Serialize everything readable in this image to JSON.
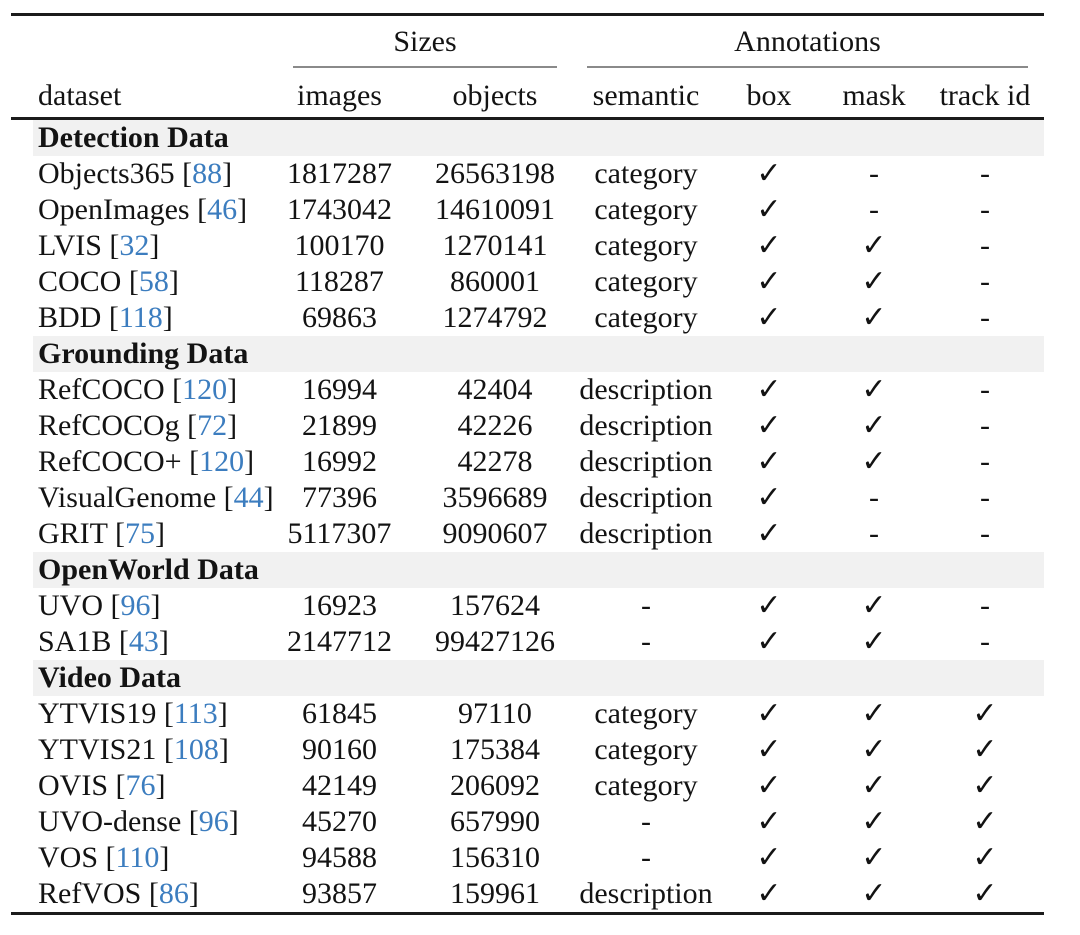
{
  "table": {
    "groups": [
      {
        "label": "Sizes"
      },
      {
        "label": "Annotations"
      }
    ],
    "columns": [
      "dataset",
      "images",
      "objects",
      "semantic",
      "box",
      "mask",
      "track id"
    ],
    "glyphs": {
      "check": "✓",
      "dash": "-"
    },
    "colors": {
      "citation_link": "#3c7dbf",
      "section_band": "#f1f1f1",
      "rule": "#1b1b1b"
    },
    "sections": [
      {
        "title": "Detection Data",
        "rows": [
          {
            "name": "Objects365",
            "ref": "88",
            "cells": [
              "1817287",
              "26563198",
              "category",
              "✓",
              "-",
              "-"
            ]
          },
          {
            "name": "OpenImages",
            "ref": "46",
            "cells": [
              "1743042",
              "14610091",
              "category",
              "✓",
              "-",
              "-"
            ]
          },
          {
            "name": "LVIS",
            "ref": "32",
            "cells": [
              "100170",
              "1270141",
              "category",
              "✓",
              "✓",
              "-"
            ]
          },
          {
            "name": "COCO",
            "ref": "58",
            "cells": [
              "118287",
              "860001",
              "category",
              "✓",
              "✓",
              "-"
            ]
          },
          {
            "name": "BDD",
            "ref": "118",
            "cells": [
              "69863",
              "1274792",
              "category",
              "✓",
              "✓",
              "-"
            ]
          }
        ]
      },
      {
        "title": "Grounding Data",
        "rows": [
          {
            "name": "RefCOCO",
            "ref": "120",
            "cells": [
              "16994",
              "42404",
              "description",
              "✓",
              "✓",
              "-"
            ]
          },
          {
            "name": "RefCOCOg",
            "ref": "72",
            "cells": [
              "21899",
              "42226",
              "description",
              "✓",
              "✓",
              "-"
            ]
          },
          {
            "name": "RefCOCO+",
            "ref": "120",
            "cells": [
              "16992",
              "42278",
              "description",
              "✓",
              "✓",
              "-"
            ]
          },
          {
            "name": "VisualGenome",
            "ref": "44",
            "cells": [
              "77396",
              "3596689",
              "description",
              "✓",
              "-",
              "-"
            ]
          },
          {
            "name": "GRIT",
            "ref": "75",
            "cells": [
              "5117307",
              "9090607",
              "description",
              "✓",
              "-",
              "-"
            ]
          }
        ]
      },
      {
        "title": "OpenWorld Data",
        "rows": [
          {
            "name": "UVO",
            "ref": "96",
            "cells": [
              "16923",
              "157624",
              "-",
              "✓",
              "✓",
              "-"
            ]
          },
          {
            "name": "SA1B",
            "ref": "43",
            "cells": [
              "2147712",
              "99427126",
              "-",
              "✓",
              "✓",
              "-"
            ]
          }
        ]
      },
      {
        "title": "Video Data",
        "rows": [
          {
            "name": "YTVIS19",
            "ref": "113",
            "cells": [
              "61845",
              "97110",
              "category",
              "✓",
              "✓",
              "✓"
            ]
          },
          {
            "name": "YTVIS21",
            "ref": "108",
            "cells": [
              "90160",
              "175384",
              "category",
              "✓",
              "✓",
              "✓"
            ]
          },
          {
            "name": "OVIS",
            "ref": "76",
            "cells": [
              "42149",
              "206092",
              "category",
              "✓",
              "✓",
              "✓"
            ]
          },
          {
            "name": "UVO-dense",
            "ref": "96",
            "cells": [
              "45270",
              "657990",
              "-",
              "✓",
              "✓",
              "✓"
            ]
          },
          {
            "name": "VOS",
            "ref": "110",
            "cells": [
              "94588",
              "156310",
              "-",
              "✓",
              "✓",
              "✓"
            ]
          },
          {
            "name": "RefVOS",
            "ref": "86",
            "cells": [
              "93857",
              "159961",
              "description",
              "✓",
              "✓",
              "✓"
            ]
          }
        ]
      }
    ]
  }
}
